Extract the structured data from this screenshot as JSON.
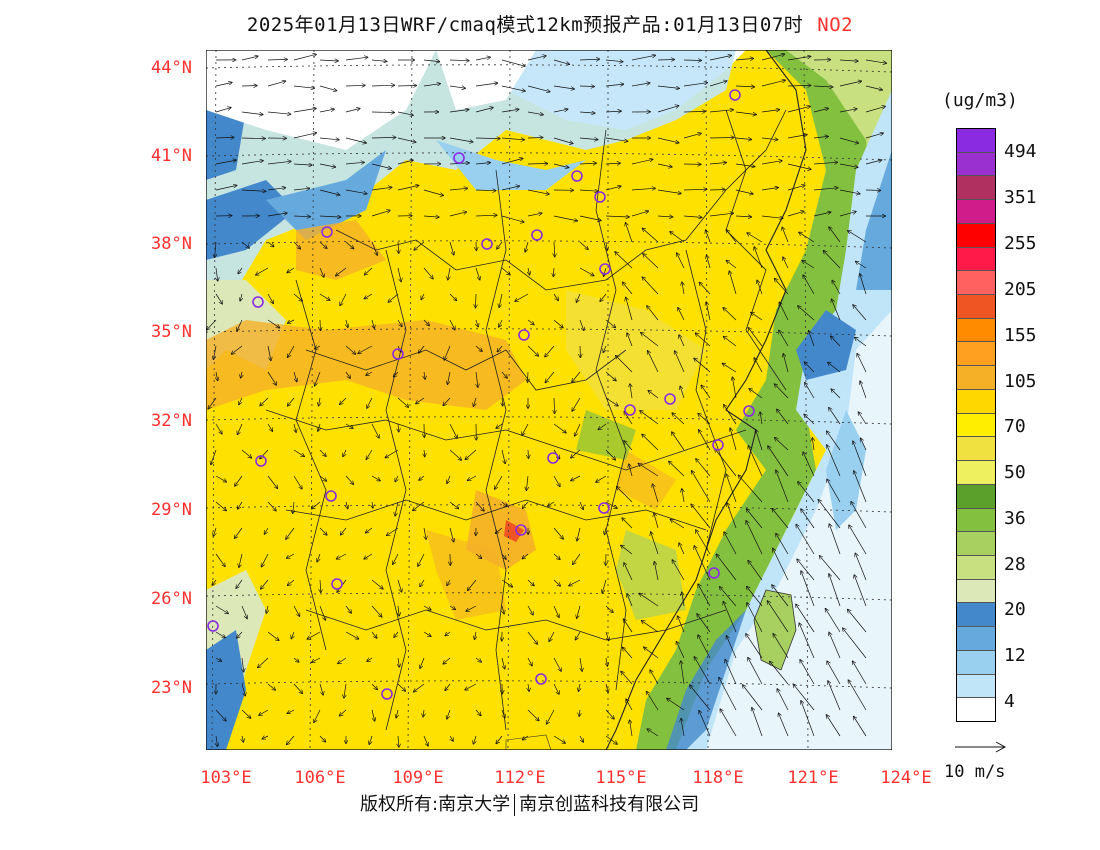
{
  "title": {
    "main": "2025年01月13日WRF/cmaq模式12km预报产品:01月13日07时",
    "pollutant": "NO2"
  },
  "axes": {
    "lat_labels": [
      "44°N",
      "41°N",
      "38°N",
      "35°N",
      "32°N",
      "29°N",
      "26°N",
      "23°N"
    ],
    "lon_labels": [
      "103°E",
      "106°E",
      "109°E",
      "112°E",
      "115°E",
      "118°E",
      "121°E",
      "124°E"
    ]
  },
  "legend": {
    "unit": "(ug/m3)",
    "labels": [
      "494",
      "351",
      "255",
      "205",
      "155",
      "105",
      "70",
      "50",
      "36",
      "28",
      "20",
      "12",
      "4"
    ],
    "colors": [
      "#8a2be2",
      "#9b30d0",
      "#b03060",
      "#d01c8b",
      "#ff0000",
      "#ff1a4a",
      "#ff6060",
      "#ee5522",
      "#ff8c00",
      "#ffa020",
      "#f5b028",
      "#ffd700",
      "#ffee00",
      "#f0e040",
      "#eef060",
      "#5aa02a",
      "#84c040",
      "#a8d060",
      "#c8e080",
      "#dde8b8",
      "#4488cc",
      "#66aadd",
      "#99d0f0",
      "#c0e4f8",
      "#ffffff"
    ]
  },
  "wind": {
    "reference": "10 m/s"
  },
  "footer": {
    "left": "版权所有:南京大学",
    "right": "南京创蓝科技有限公司"
  },
  "monitoring_sites_count": 24
}
